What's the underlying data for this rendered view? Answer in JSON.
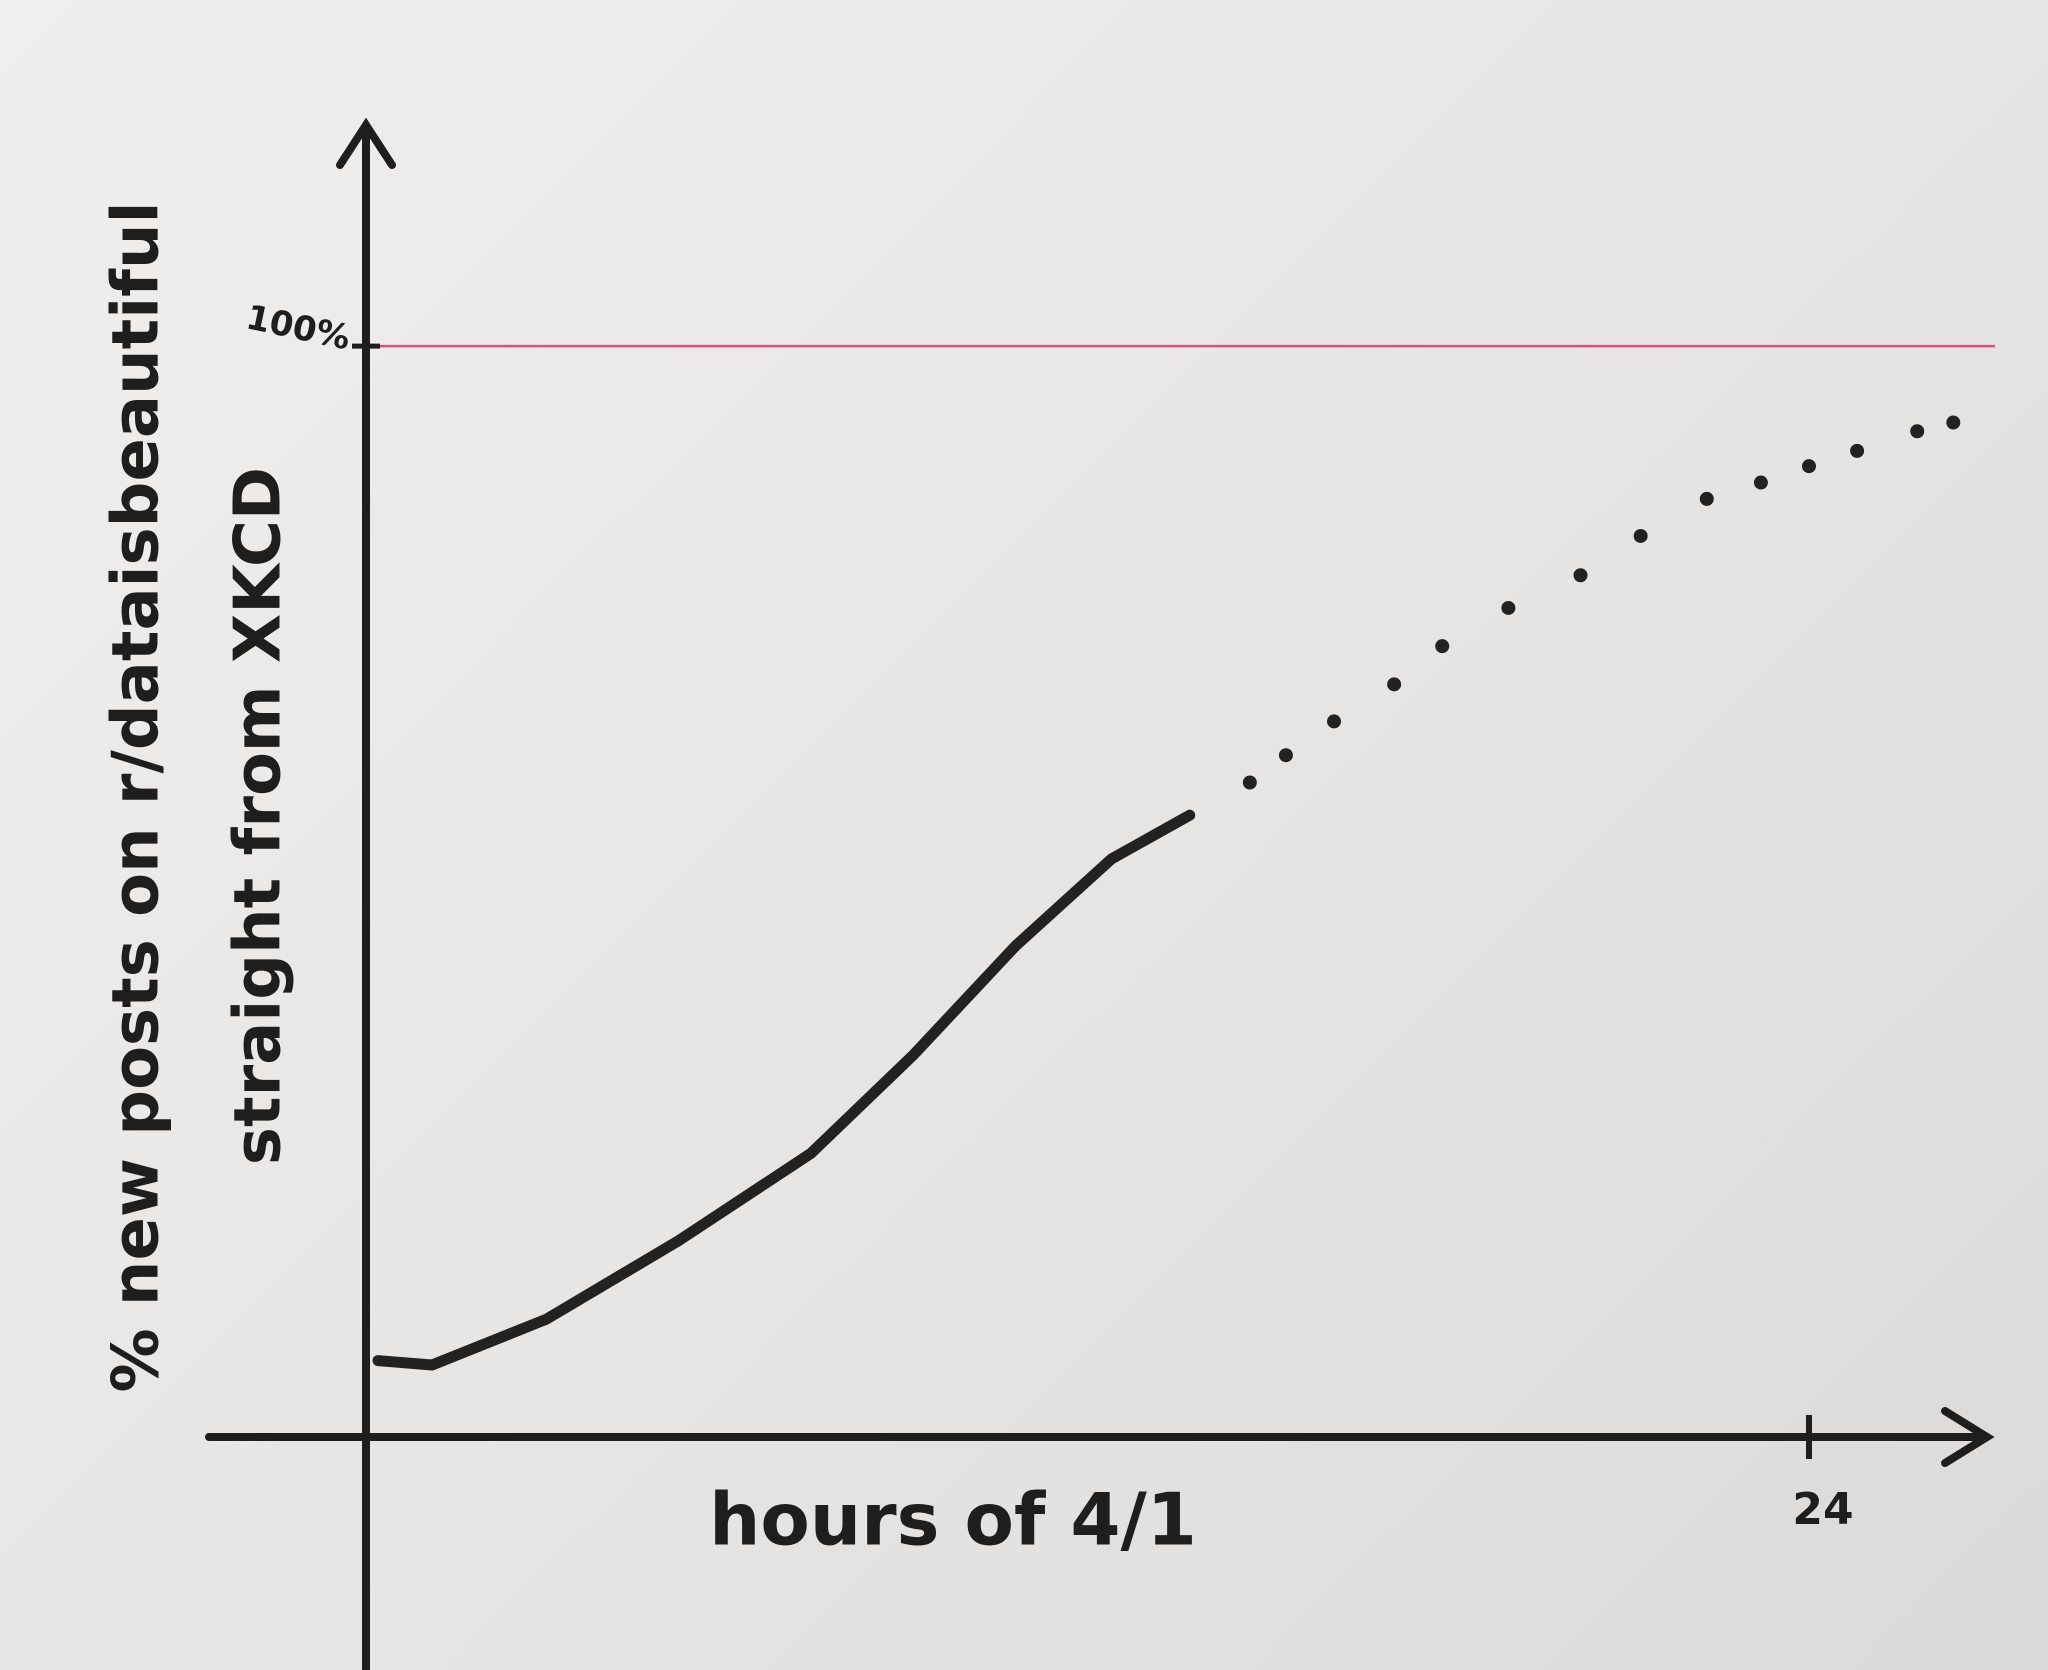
{
  "chart_data": {
    "type": "line",
    "ylabel": [
      "% new posts on r/dataisbeautiful",
      "straight from XKCD"
    ],
    "xlabel": "hours of 4/1",
    "xlim": [
      0,
      27
    ],
    "ylim": [
      0,
      120
    ],
    "xticks": [
      24
    ],
    "yticks": [
      {
        "value": 100,
        "label": "100%"
      }
    ],
    "grid": true,
    "grid_color": "#d9507a",
    "series": [
      {
        "color": "#222222",
        "style": "solid",
        "x": [
          0.2,
          1.1,
          3,
          5.2,
          7.4,
          9.1,
          10.8,
          12.4,
          13.7
        ],
        "values": [
          7,
          6.6,
          10.8,
          18,
          26,
          35,
          45,
          53,
          57
        ]
      },
      {
        "color": "#222222",
        "style": "dotted",
        "x": [
          14.7,
          15.3,
          16.1,
          17.1,
          17.9,
          19,
          20.2,
          21.2,
          22.3,
          23.2,
          24,
          24.8,
          25.8,
          26.4
        ],
        "values": [
          60,
          62.5,
          65.6,
          69,
          72.5,
          76,
          79,
          82.6,
          86,
          87.5,
          89,
          90.4,
          92.2,
          93
        ]
      }
    ]
  }
}
